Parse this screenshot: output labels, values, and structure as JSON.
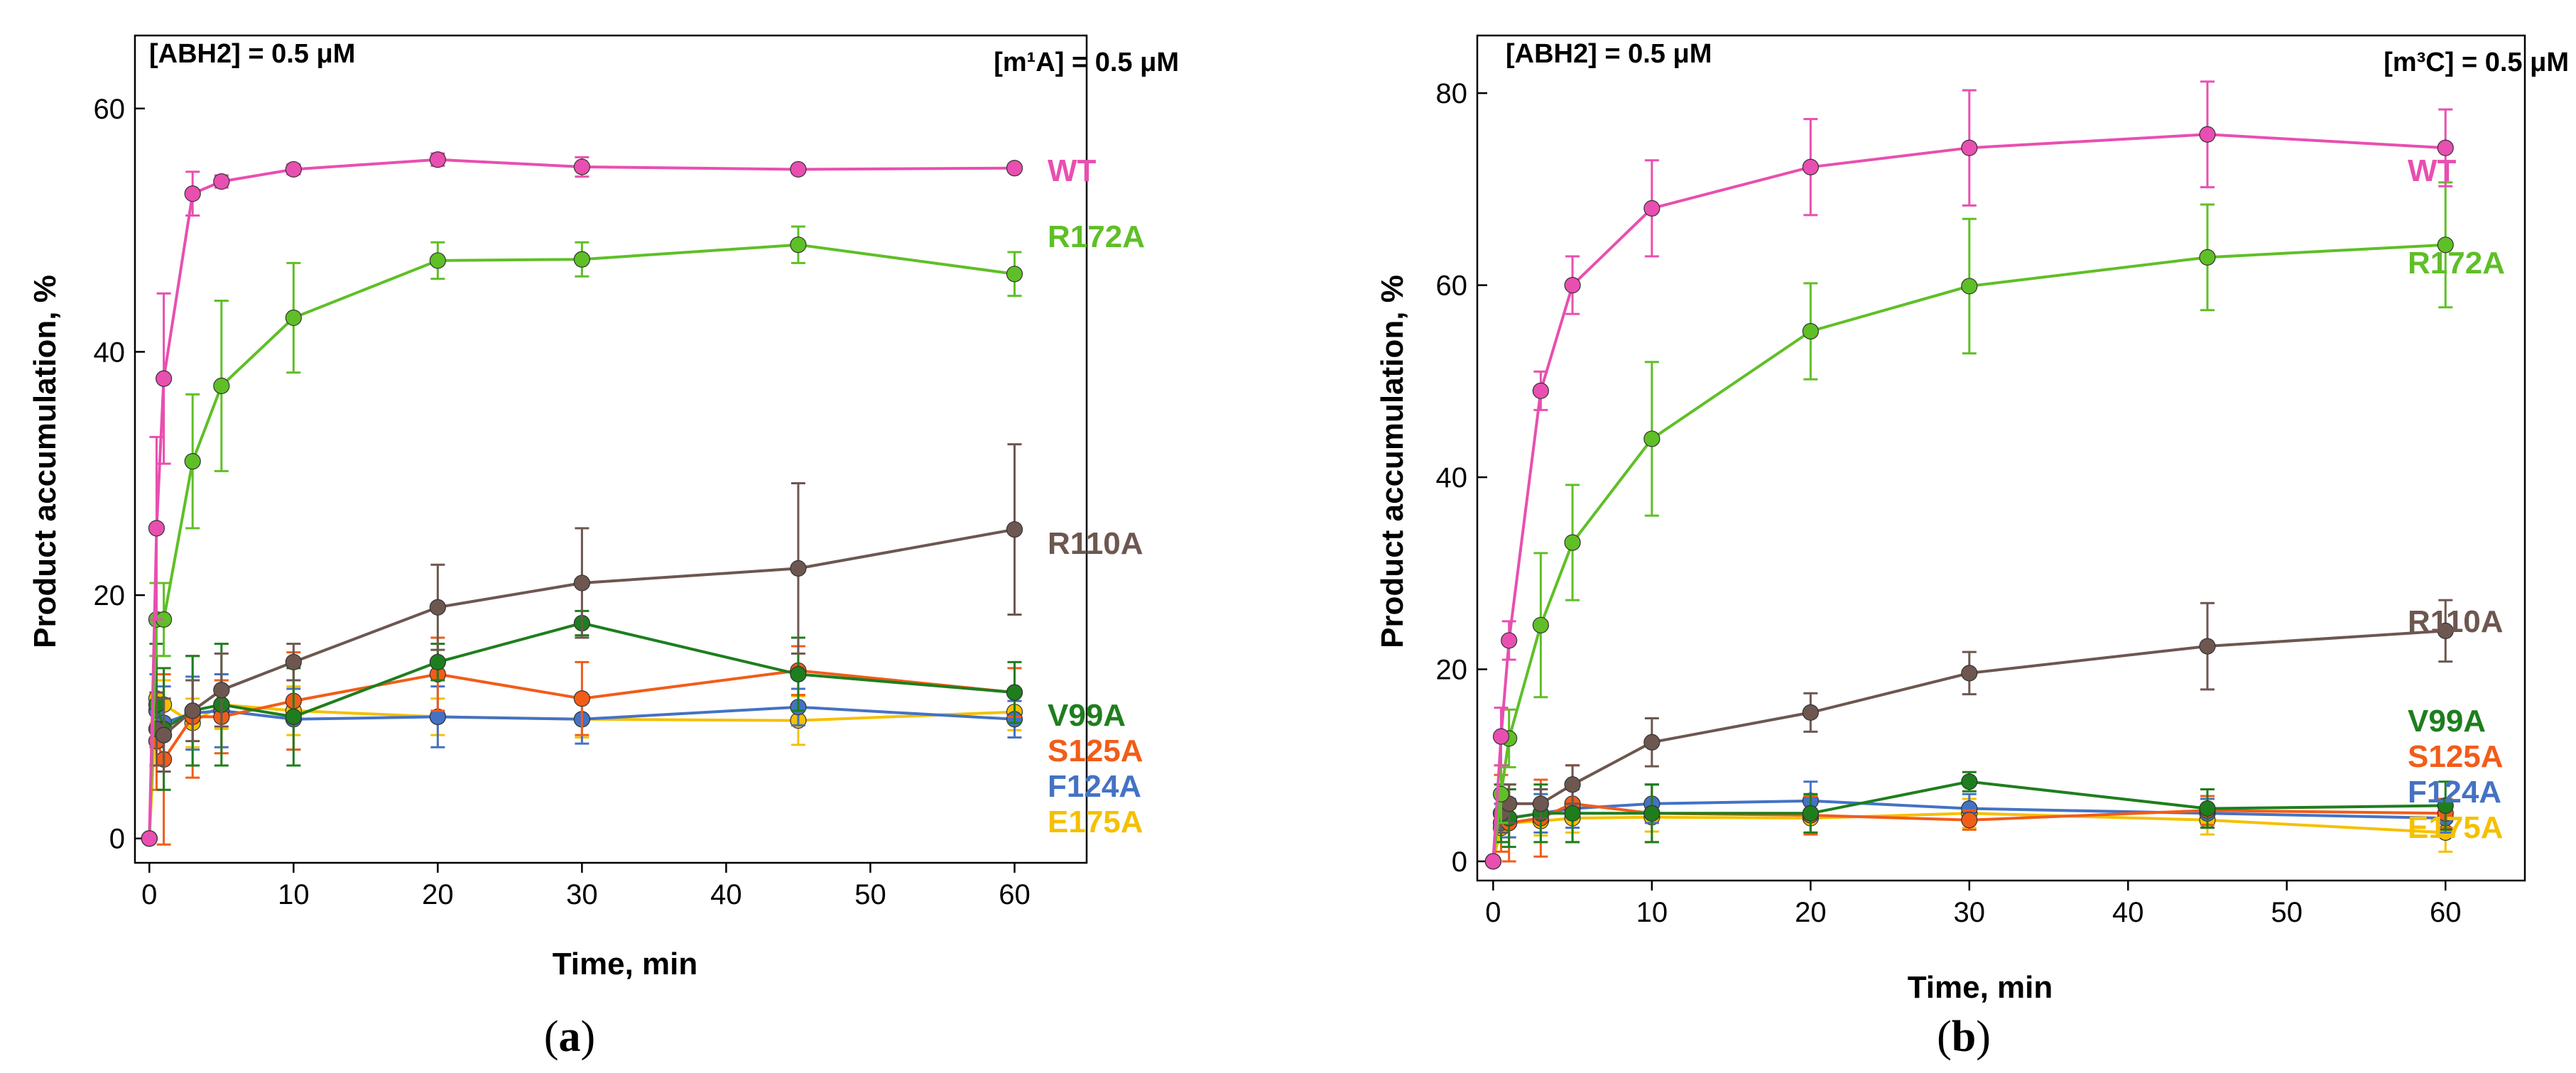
{
  "chart_data": [
    {
      "type": "line",
      "panel": "a",
      "caption": "(a)",
      "caption_letter": "a",
      "header_left": "[ABH2] = 0.5 μM",
      "header_right": "[m¹A] = 0.5 μM",
      "xlabel": "Time, min",
      "ylabel": "Product accumulation, %",
      "xlim": [
        -1,
        65
      ],
      "ylim": [
        -2,
        66
      ],
      "xticks": [
        0,
        10,
        20,
        30,
        40,
        50,
        60
      ],
      "yticks": [
        0,
        20,
        40,
        60
      ],
      "x": [
        0.5,
        1,
        3,
        5,
        10,
        20,
        30,
        45,
        60
      ],
      "series": [
        {
          "name": "WT",
          "color": "#e84fb0",
          "start_zero": true,
          "values": [
            25.5,
            37.8,
            53,
            54,
            55,
            55.8,
            55.2,
            55,
            55.1
          ],
          "errors": [
            7.5,
            7,
            1.8,
            0.5,
            0.4,
            0.5,
            0.8,
            0.3,
            0.3
          ]
        },
        {
          "name": "R172A",
          "color": "#5fbf27",
          "start_zero": true,
          "values": [
            18,
            18,
            31,
            37.2,
            42.8,
            47.5,
            47.6,
            48.8,
            46.4
          ],
          "errors": [
            3,
            3,
            5.5,
            7,
            4.5,
            1.5,
            1.4,
            1.5,
            1.8
          ]
        },
        {
          "name": "R110A",
          "color": "#6d5750",
          "start_zero": false,
          "values": [
            9,
            8.5,
            10.5,
            12.2,
            14.5,
            19,
            21,
            22.2,
            25.4
          ],
          "errors": [
            3,
            3,
            2.5,
            3,
            1.5,
            3.5,
            4.5,
            7,
            7
          ]
        },
        {
          "name": "V99A",
          "color": "#1e7e1e",
          "start_zero": false,
          "values": [
            11,
            9,
            10.5,
            11,
            10,
            14.5,
            17.7,
            13.5,
            12
          ],
          "errors": [
            5,
            5,
            4.5,
            5,
            4,
            1.5,
            1,
            3,
            2.5
          ]
        },
        {
          "name": "S125A",
          "color": "#f25c19",
          "start_zero": false,
          "values": [
            8,
            6.5,
            10,
            10,
            11.3,
            13.5,
            11.5,
            13.8,
            12
          ],
          "errors": [
            4,
            7,
            5,
            3,
            4,
            3,
            3,
            2,
            2
          ]
        },
        {
          "name": "F124A",
          "color": "#4472c4",
          "start_zero": false,
          "values": [
            10.5,
            9.5,
            10.3,
            10.5,
            9.8,
            10,
            9.8,
            10.8,
            9.8
          ],
          "errors": [
            3,
            3,
            3,
            3,
            2.5,
            2.5,
            2,
            1.5,
            1.5
          ]
        },
        {
          "name": "E175A",
          "color": "#f5c000",
          "start_zero": true,
          "values": [
            11.5,
            11,
            9.5,
            11,
            10.5,
            10,
            9.8,
            9.7,
            10.4
          ],
          "errors": [
            2,
            2,
            2,
            2,
            2,
            1.5,
            1.5,
            2,
            1.5
          ]
        }
      ]
    },
    {
      "type": "line",
      "panel": "b",
      "caption": "(b)",
      "caption_letter": "b",
      "header_left": "[ABH2] = 0.5 μM",
      "header_right": "[m³C] = 0.5 μM",
      "xlabel": "Time, min",
      "ylabel": "Product accumulation, %",
      "xlim": [
        -1,
        65
      ],
      "ylim": [
        -2,
        86
      ],
      "xticks": [
        0,
        10,
        20,
        30,
        40,
        50,
        60
      ],
      "yticks": [
        0,
        20,
        40,
        60,
        80
      ],
      "x": [
        0.5,
        1,
        3,
        5,
        10,
        20,
        30,
        45,
        60
      ],
      "series": [
        {
          "name": "WT",
          "color": "#e84fb0",
          "start_zero": true,
          "values": [
            13,
            23,
            49,
            60,
            68,
            72.3,
            74.3,
            75.7,
            74.3
          ],
          "errors": [
            3,
            2,
            2,
            3,
            5,
            5,
            6,
            5.5,
            4
          ]
        },
        {
          "name": "R172A",
          "color": "#5fbf27",
          "start_zero": true,
          "values": [
            7,
            12.8,
            24.6,
            33.2,
            44,
            55.2,
            59.9,
            62.9,
            64.2
          ],
          "errors": [
            3,
            3,
            7.5,
            6,
            8,
            5,
            7,
            5.5,
            6.5
          ]
        },
        {
          "name": "R110A",
          "color": "#6d5750",
          "start_zero": false,
          "values": [
            5,
            6,
            6,
            8,
            12.4,
            15.5,
            19.6,
            22.4,
            24
          ],
          "errors": [
            2,
            2,
            1.5,
            2,
            2.5,
            2,
            2.2,
            4.5,
            3.2
          ]
        },
        {
          "name": "V99A",
          "color": "#1e7e1e",
          "start_zero": false,
          "values": [
            5,
            4.5,
            5,
            5,
            5,
            5,
            8.3,
            5.5,
            5.8
          ],
          "errors": [
            3,
            3,
            3,
            3,
            3,
            2,
            1,
            2,
            2.5
          ]
        },
        {
          "name": "S125A",
          "color": "#f25c19",
          "start_zero": false,
          "values": [
            5,
            4,
            4.5,
            6,
            5,
            4.8,
            4.3,
            5.3,
            5
          ],
          "errors": [
            4,
            4,
            4,
            4,
            3,
            2,
            1,
            1.5,
            1.5
          ]
        },
        {
          "name": "F124A",
          "color": "#4472c4",
          "start_zero": false,
          "values": [
            4,
            4.5,
            5,
            5.5,
            6,
            6.3,
            5.5,
            5,
            4.5
          ],
          "errors": [
            2,
            2,
            2,
            2,
            2,
            2,
            1.5,
            1.5,
            1.5
          ]
        },
        {
          "name": "E175A",
          "color": "#f5c000",
          "start_zero": true,
          "values": [
            3.5,
            4,
            4.2,
            4.5,
            4.6,
            4.5,
            5,
            4.3,
            3
          ],
          "errors": [
            1.5,
            1.5,
            1.5,
            1.5,
            1.5,
            1.5,
            1.5,
            1.5,
            2
          ]
        }
      ]
    }
  ]
}
